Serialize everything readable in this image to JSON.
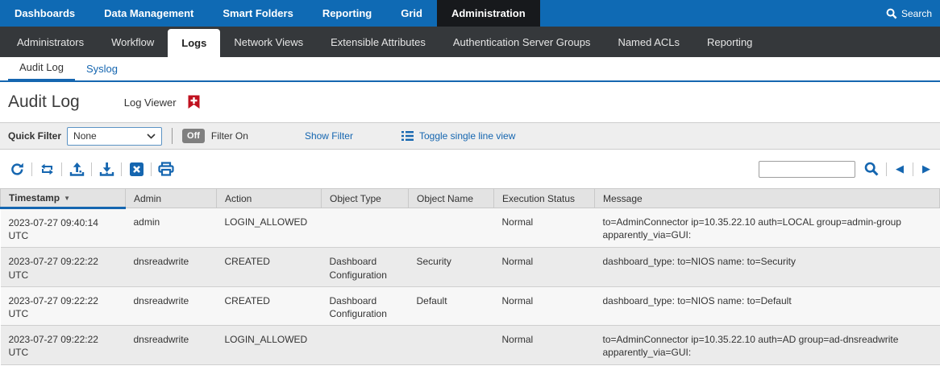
{
  "colors": {
    "nav_blue": "#0f6ab4",
    "active_tab_dark": "#17191c",
    "subnav_dark": "#35383b",
    "accent_blue": "#1566b0",
    "bookmark_red": "#c0111f",
    "off_badge_gray": "#808080",
    "row_odd": "#f7f7f7",
    "row_even": "#ebebeb"
  },
  "top_nav": {
    "items": [
      {
        "label": "Dashboards",
        "active": false
      },
      {
        "label": "Data Management",
        "active": false
      },
      {
        "label": "Smart Folders",
        "active": false
      },
      {
        "label": "Reporting",
        "active": false
      },
      {
        "label": "Grid",
        "active": false
      },
      {
        "label": "Administration",
        "active": true
      }
    ],
    "search_label": "Search"
  },
  "sub_nav": {
    "items": [
      {
        "label": "Administrators",
        "active": false
      },
      {
        "label": "Workflow",
        "active": false
      },
      {
        "label": "Logs",
        "active": true
      },
      {
        "label": "Network Views",
        "active": false
      },
      {
        "label": "Extensible Attributes",
        "active": false
      },
      {
        "label": "Authentication Server Groups",
        "active": false
      },
      {
        "label": "Named ACLs",
        "active": false
      },
      {
        "label": "Reporting",
        "active": false
      }
    ]
  },
  "tabs": {
    "items": [
      {
        "label": "Audit Log",
        "active": true
      },
      {
        "label": "Syslog",
        "active": false
      }
    ]
  },
  "page": {
    "title": "Audit Log",
    "subtitle": "Log Viewer",
    "bookmark_icon": "bookmark-add-icon"
  },
  "filter_bar": {
    "quick_filter_label": "Quick Filter",
    "quick_filter_value": "None",
    "off_label": "Off",
    "filter_on_label": "Filter On",
    "show_filter_label": "Show Filter",
    "toggle_single_line_label": "Toggle single line view"
  },
  "toolbar": {
    "icons": [
      "refresh-icon",
      "replay-icon",
      "upload-icon",
      "download-icon",
      "csv-export-icon",
      "print-icon"
    ],
    "right_icons": [
      "search-icon",
      "page-previous-icon",
      "page-next-icon"
    ],
    "search_value": ""
  },
  "table": {
    "sorted_column": "Timestamp",
    "sort_direction": "desc",
    "columns": [
      {
        "label": "Timestamp",
        "key": "timestamp"
      },
      {
        "label": "Admin",
        "key": "admin"
      },
      {
        "label": "Action",
        "key": "action"
      },
      {
        "label": "Object Type",
        "key": "object_type"
      },
      {
        "label": "Object Name",
        "key": "object_name"
      },
      {
        "label": "Execution Status",
        "key": "execution_status"
      },
      {
        "label": "Message",
        "key": "message"
      }
    ],
    "rows": [
      {
        "timestamp": "2023-07-27 09:40:14 UTC",
        "admin": "admin",
        "action": "LOGIN_ALLOWED",
        "object_type": "",
        "object_name": "",
        "execution_status": "Normal",
        "message": "to=AdminConnector ip=10.35.22.10 auth=LOCAL group=admin-group apparently_via=GUI:"
      },
      {
        "timestamp": "2023-07-27 09:22:22 UTC",
        "admin": "dnsreadwrite",
        "action": "CREATED",
        "object_type": "Dashboard Configuration",
        "object_name": "Security",
        "execution_status": "Normal",
        "message": "dashboard_type: to=NIOS name: to=Security"
      },
      {
        "timestamp": "2023-07-27 09:22:22 UTC",
        "admin": "dnsreadwrite",
        "action": "CREATED",
        "object_type": "Dashboard Configuration",
        "object_name": "Default",
        "execution_status": "Normal",
        "message": "dashboard_type: to=NIOS name: to=Default"
      },
      {
        "timestamp": "2023-07-27 09:22:22 UTC",
        "admin": "dnsreadwrite",
        "action": "LOGIN_ALLOWED",
        "object_type": "",
        "object_name": "",
        "execution_status": "Normal",
        "message": "to=AdminConnector ip=10.35.22.10 auth=AD group=ad-dnsreadwrite apparently_via=GUI:"
      }
    ]
  }
}
